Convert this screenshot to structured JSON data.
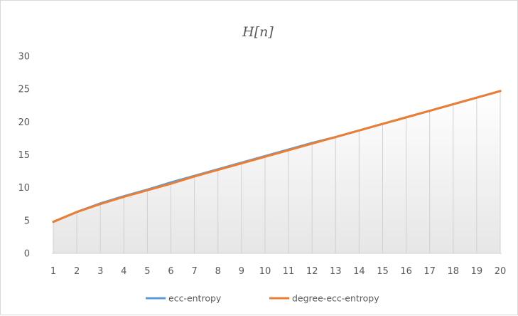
{
  "chart_data": {
    "type": "line",
    "title": "H[n]",
    "xlabel": "",
    "ylabel": "",
    "categories": [
      "1",
      "2",
      "3",
      "4",
      "5",
      "6",
      "7",
      "8",
      "9",
      "10",
      "11",
      "12",
      "13",
      "14",
      "15",
      "16",
      "17",
      "18",
      "19",
      "20"
    ],
    "ylim": [
      0,
      30
    ],
    "yticks": [
      "0",
      "5",
      "10",
      "15",
      "20",
      "25",
      "30"
    ],
    "grid": "vertical drop lines at each category",
    "legend_position": "bottom",
    "series": [
      {
        "name": "ecc-entropy",
        "color": "#5B9BD5",
        "values": [
          4.8,
          6.3,
          7.6,
          8.7,
          9.7,
          10.8,
          11.8,
          12.8,
          13.8,
          14.8,
          15.8,
          16.8,
          17.7,
          18.7,
          19.7,
          20.7,
          21.7,
          22.7,
          23.7,
          24.7
        ]
      },
      {
        "name": "degree-ecc-entropy",
        "color": "#ED7D31",
        "values": [
          4.8,
          6.3,
          7.5,
          8.6,
          9.6,
          10.6,
          11.7,
          12.7,
          13.7,
          14.7,
          15.7,
          16.7,
          17.7,
          18.7,
          19.7,
          20.7,
          21.7,
          22.7,
          23.7,
          24.7
        ]
      }
    ]
  }
}
